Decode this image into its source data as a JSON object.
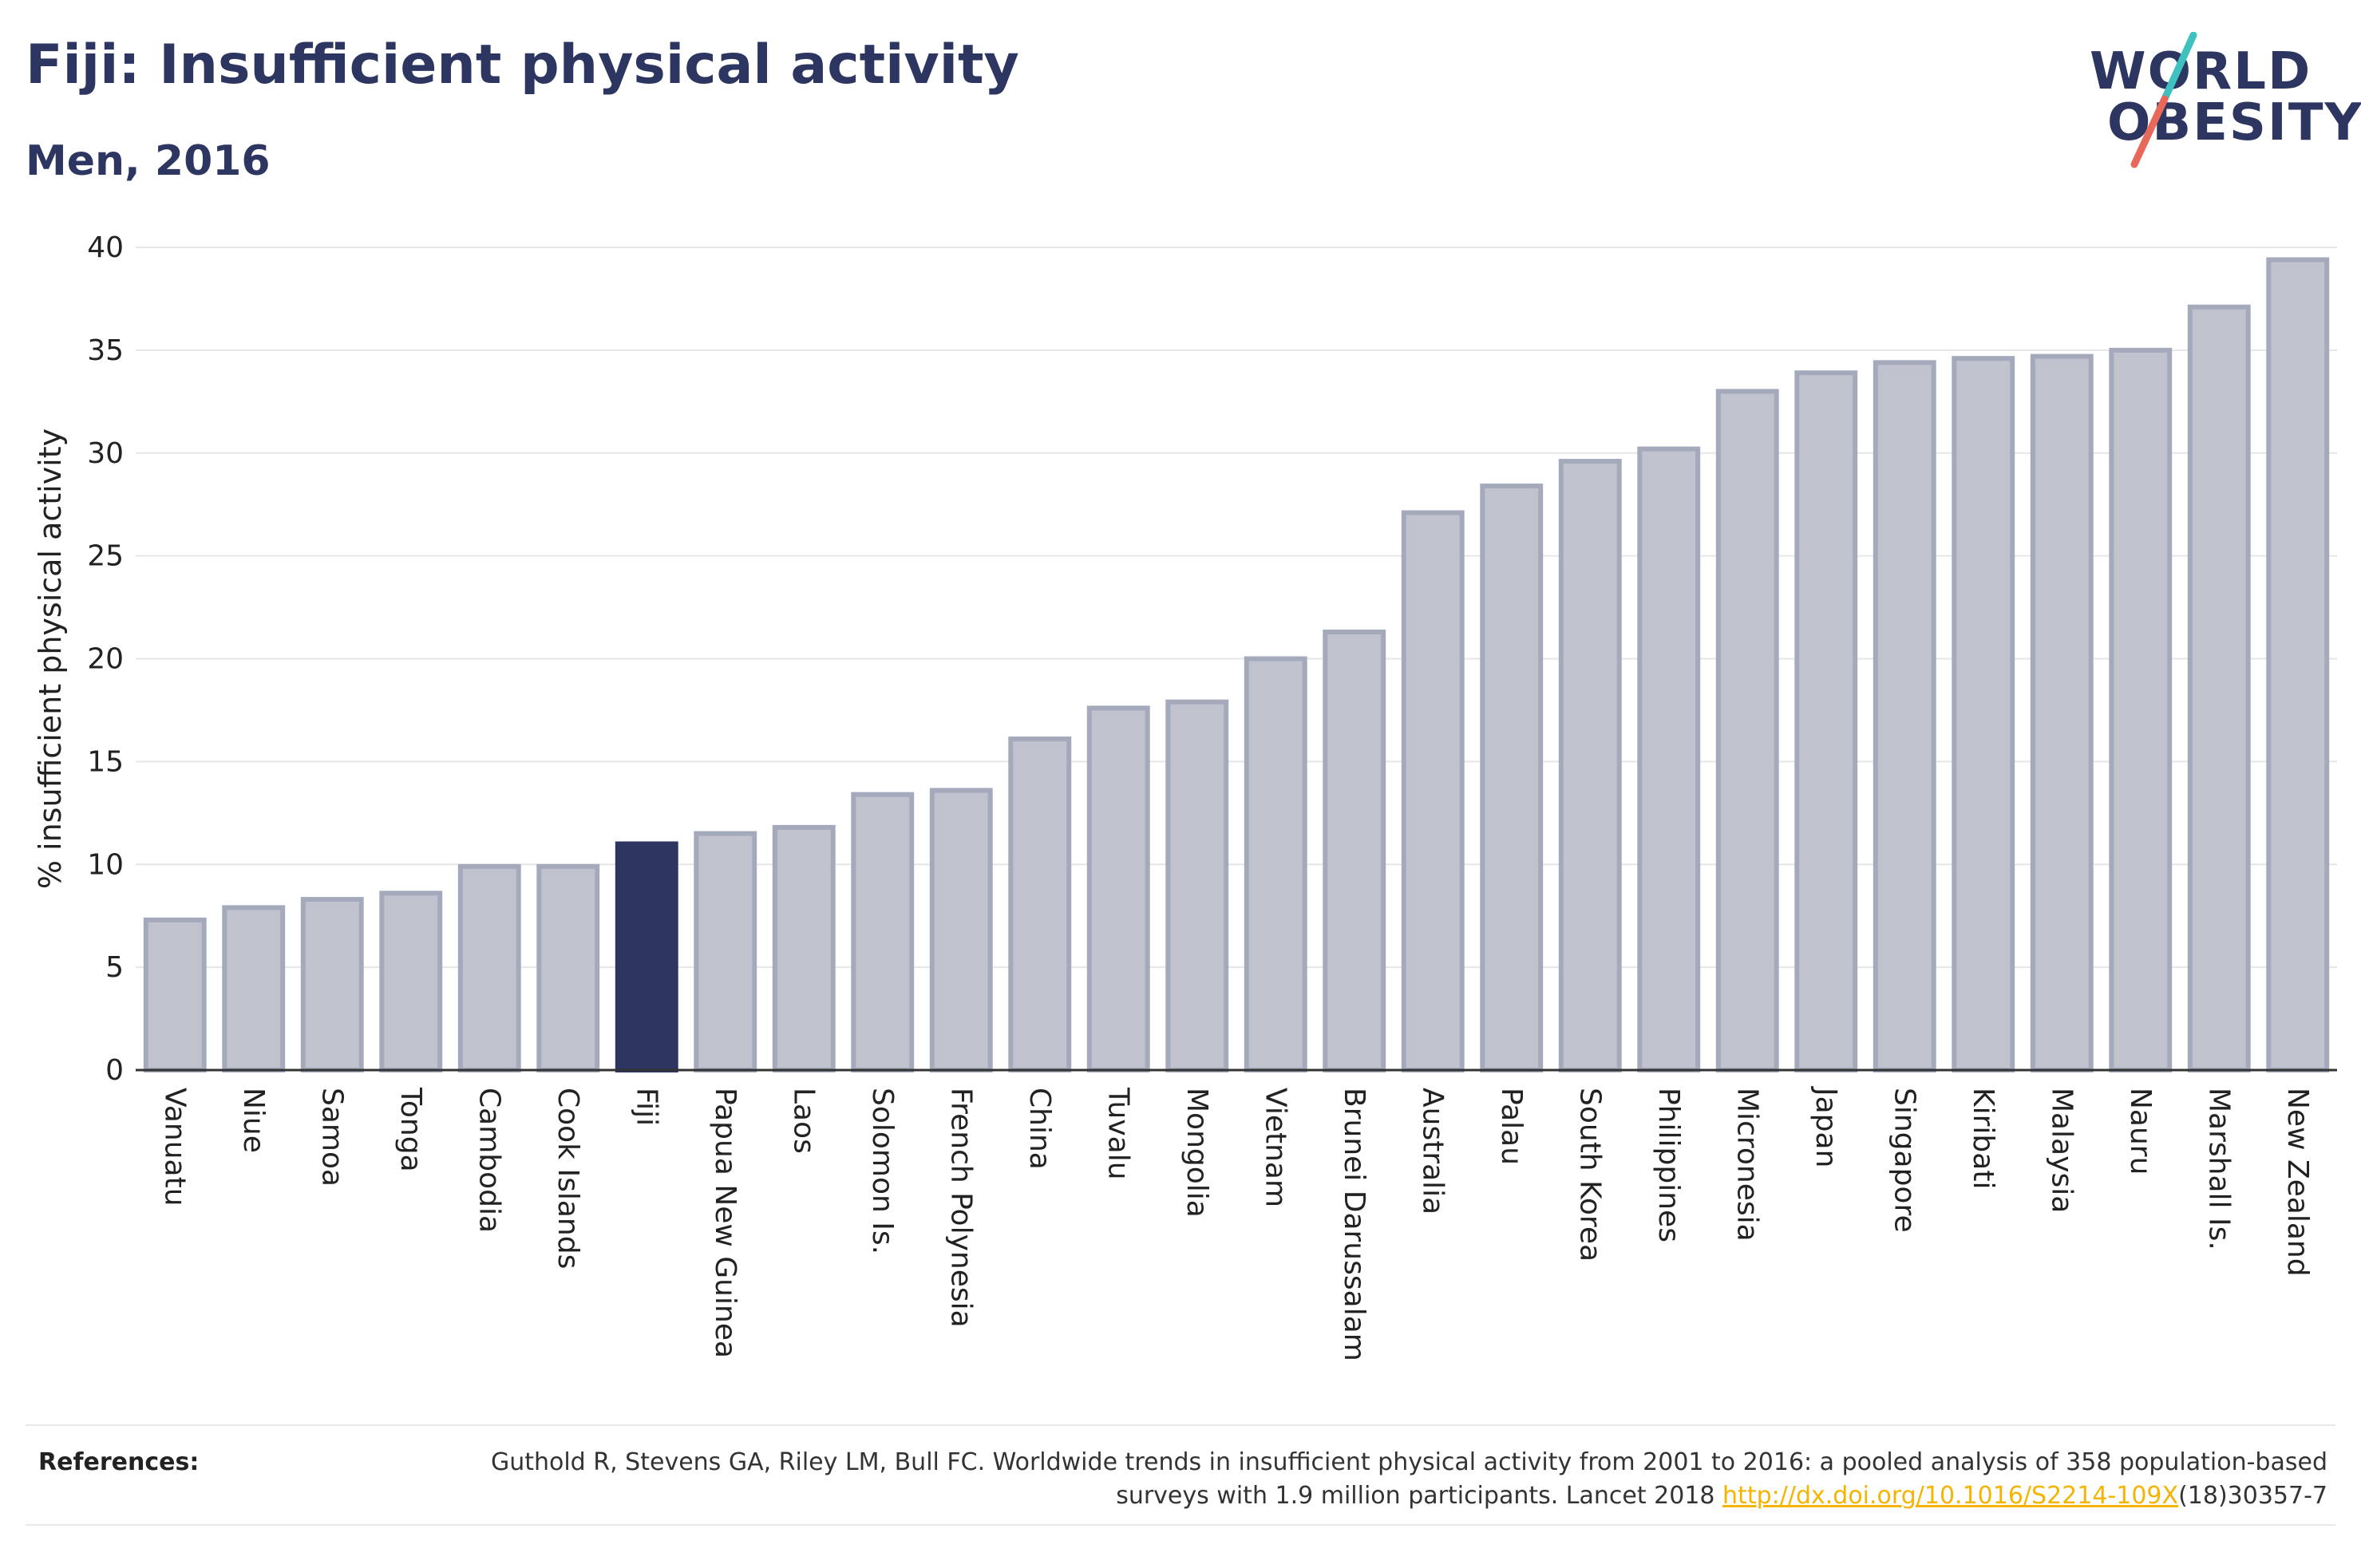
{
  "header": {
    "title": "Fiji: Insufficient physical activity",
    "subtitle": "Men, 2016"
  },
  "logo": {
    "line1": "WORLD",
    "line2": "OBESITY",
    "slash_color_top": "#3fc1c0",
    "slash_color_bottom": "#e8685a"
  },
  "colors": {
    "bar_fill": "#c0c3ce",
    "bar_stroke": "#a4a9bc",
    "highlight": "#2c3660",
    "axis_text": "#222222",
    "grid": "#e6e6e6"
  },
  "chart_data": {
    "type": "bar",
    "title": "",
    "ylabel": "% insufficient physical activity",
    "ylim": [
      0,
      40
    ],
    "yticks": [
      0,
      5,
      10,
      15,
      20,
      25,
      30,
      35,
      40
    ],
    "grid": true,
    "highlight": "Fiji",
    "categories": [
      "Vanuatu",
      "Niue",
      "Samoa",
      "Tonga",
      "Cambodia",
      "Cook Islands",
      "Fiji",
      "Papua New Guinea",
      "Laos",
      "Solomon Is.",
      "French Polynesia",
      "China",
      "Tuvalu",
      "Mongolia",
      "Vietnam",
      "Brunei Darussalam",
      "Australia",
      "Palau",
      "South Korea",
      "Philippines",
      "Micronesia",
      "Japan",
      "Singapore",
      "Kiribati",
      "Malaysia",
      "Nauru",
      "Marshall Is.",
      "New Zealand"
    ],
    "values": [
      7.3,
      7.9,
      8.3,
      8.6,
      9.9,
      9.9,
      11.0,
      11.5,
      11.8,
      13.4,
      13.6,
      16.1,
      17.6,
      17.9,
      20.0,
      21.3,
      27.1,
      28.4,
      29.6,
      30.2,
      33.0,
      33.9,
      34.4,
      34.6,
      34.7,
      35.0,
      37.1,
      39.4
    ]
  },
  "references": {
    "label": "References:",
    "text_part1": "Guthold R, Stevens GA, Riley LM, Bull FC. Worldwide trends in insufficient physical activity from 2001 to 2016: a pooled analysis of 358 population-based surveys with 1.9 million participants. Lancet 2018 ",
    "link": "http://dx.doi.org/10.1016/S2214-109X",
    "text_part2": "(18)30357-7"
  }
}
